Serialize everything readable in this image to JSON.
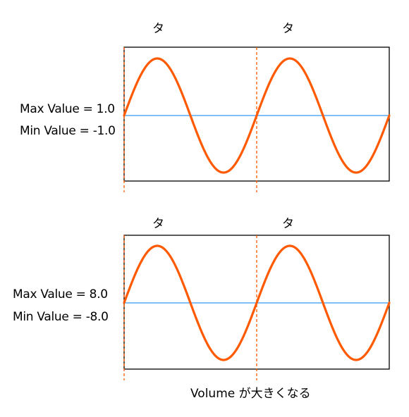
{
  "panels": [
    {
      "beat_labels": [
        "タ",
        "タ"
      ],
      "max_label": "Max Value = 1.0",
      "min_label": "Min Value = -1.0"
    },
    {
      "beat_labels": [
        "タ",
        "タ"
      ],
      "max_label": "Max Value = 8.0",
      "min_label": "Min Value = -8.0"
    }
  ],
  "caption": "Volume が大きくなる",
  "colors": {
    "wave": "#ff5a00",
    "baseline": "#5aa9f0",
    "beat_marker": "#ff5a00",
    "frame": "#000000"
  }
}
